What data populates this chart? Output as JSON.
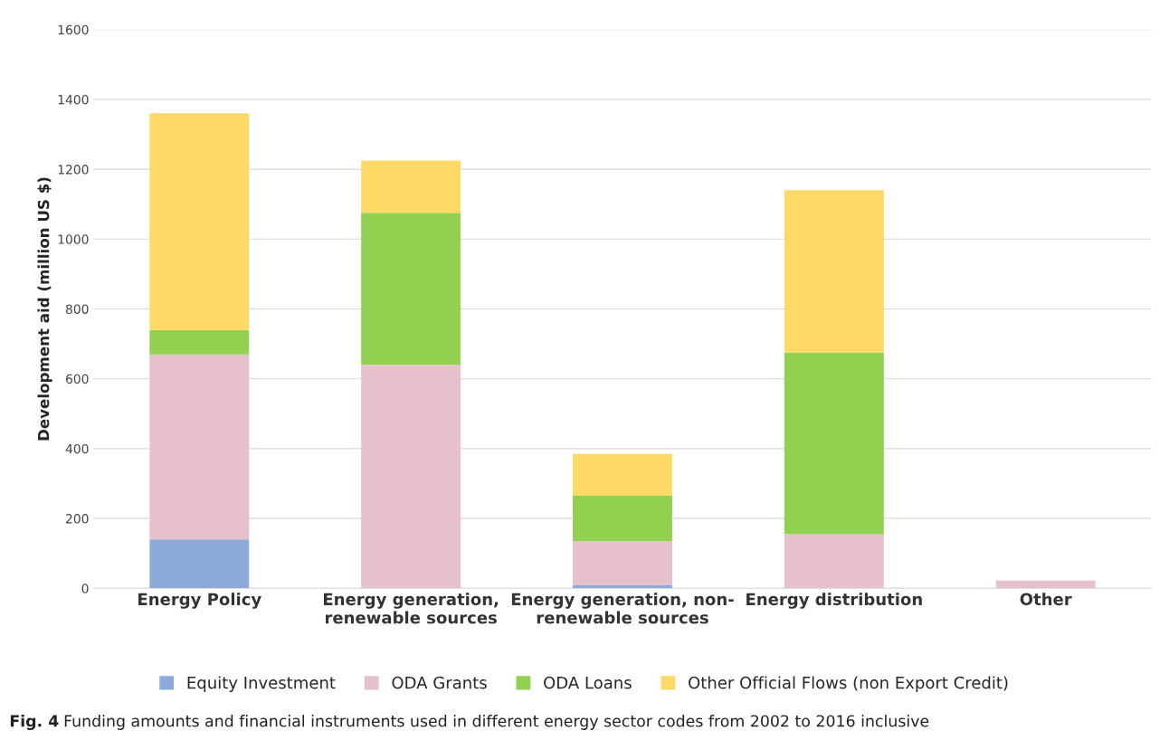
{
  "chart_data": {
    "type": "bar",
    "stacked": true,
    "ylabel": "Development aid (million US $)",
    "categories": [
      "Energy Policy",
      "Energy generation,\nrenewable sources",
      "Energy generation, non-\nrenewable sources",
      "Energy distribution",
      "Other"
    ],
    "series": [
      {
        "name": "Equity Investment",
        "color": "#8eaadb",
        "values": [
          140,
          0,
          10,
          0,
          0
        ]
      },
      {
        "name": "ODA Grants",
        "color": "#e6c1cb",
        "values": [
          530,
          640,
          125,
          155,
          22
        ]
      },
      {
        "name": "ODA Loans",
        "color": "#92d050",
        "values": [
          70,
          435,
          130,
          520,
          0
        ]
      },
      {
        "name": "Other Official Flows (non Export Credit)",
        "color": "#ffd966",
        "values": [
          620,
          150,
          120,
          465,
          0
        ]
      }
    ],
    "ylim": [
      0,
      1600
    ],
    "yticks": [
      0,
      200,
      400,
      600,
      800,
      1000,
      1200,
      1400,
      1600
    ],
    "grid": "y",
    "legend": "bottom",
    "annotations": [
      "Fig. 4",
      "Funding amounts and financial instruments used in different energy sector codes from 2002 to 2016 inclusive"
    ]
  }
}
